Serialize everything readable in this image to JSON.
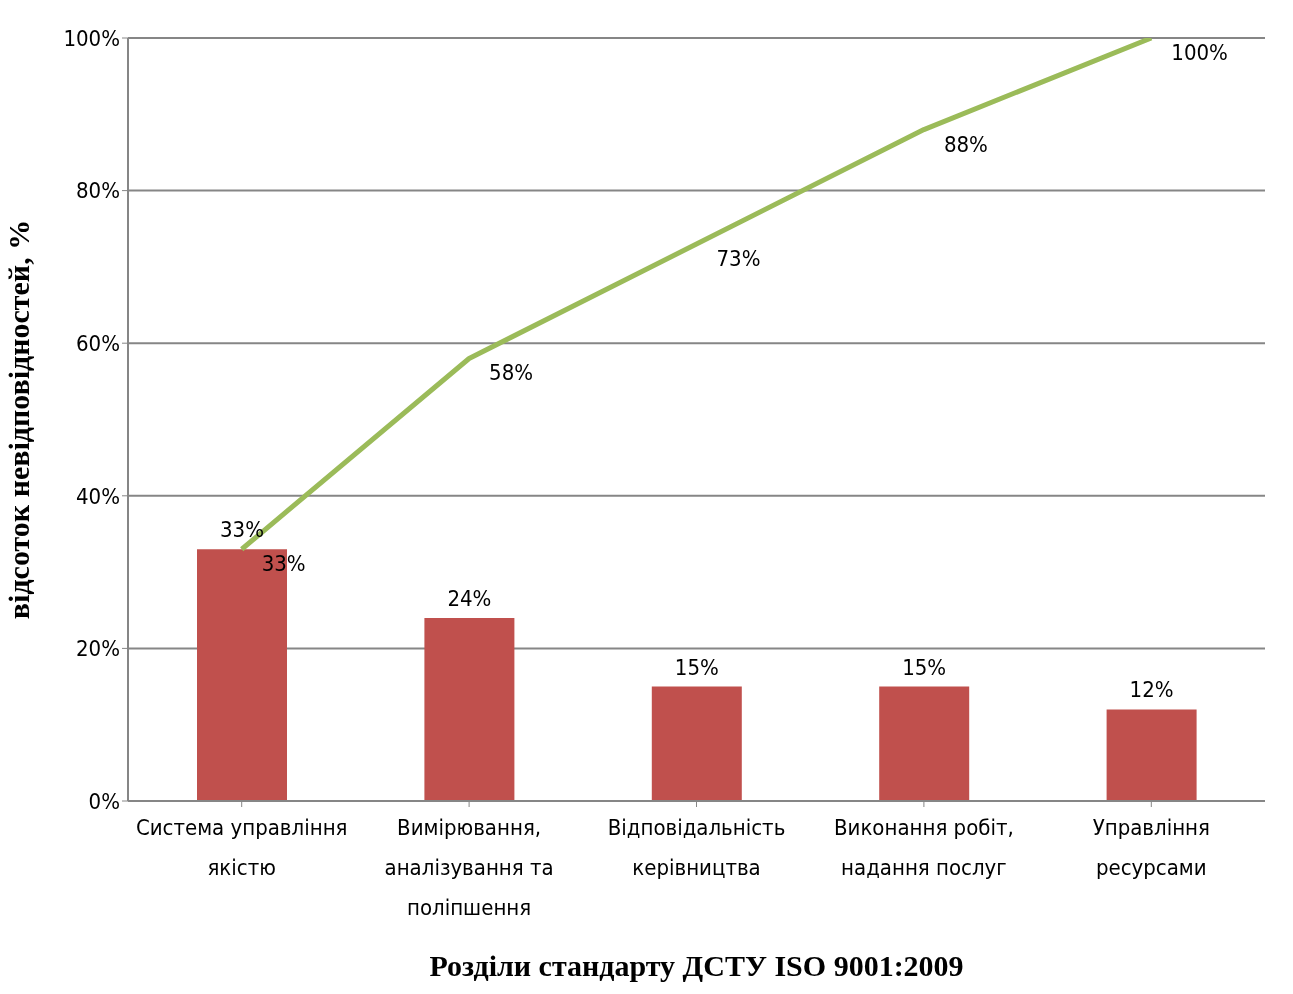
{
  "chart_data": {
    "type": "bar",
    "xlabel": "Розділи стандарту ДСТУ ISO 9001:2009",
    "ylabel": "відсоток невідповідностей, %",
    "categories": [
      "Система управління якістю",
      "Вимірювання, аналізування та поліпшення",
      "Відповідальність керівництва",
      "Виконання робіт, надання послуг",
      "Управління ресурсами"
    ],
    "series": [
      {
        "color": "#c0504d",
        "values": [
          33,
          24,
          15,
          15,
          12
        ],
        "value_labels": [
          "33%",
          "24%",
          "15%",
          "15%",
          "12%"
        ]
      },
      {
        "type": "line",
        "color": "#9bbb59",
        "values": [
          33,
          58,
          73,
          88,
          100
        ],
        "value_labels": [
          "33%",
          "58%",
          "73%",
          "88%",
          "100%"
        ]
      }
    ],
    "ylim": [
      0,
      100
    ],
    "yticks": [
      {
        "value": 0,
        "label": "0%"
      },
      {
        "value": 20,
        "label": "20%"
      },
      {
        "value": 40,
        "label": "40%"
      },
      {
        "value": 60,
        "label": "60%"
      },
      {
        "value": 80,
        "label": "80%"
      },
      {
        "value": 100,
        "label": "100%"
      }
    ],
    "grid": "y",
    "legend": false,
    "marker": "none"
  }
}
